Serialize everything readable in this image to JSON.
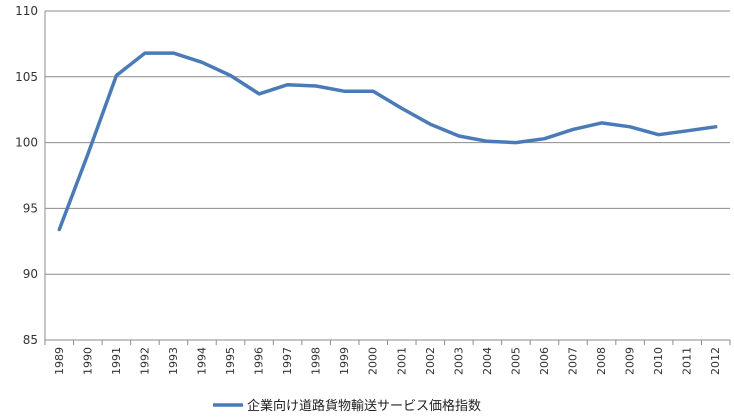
{
  "chart_data": {
    "type": "line",
    "x": [
      "1989",
      "1990",
      "1991",
      "1992",
      "1993",
      "1994",
      "1995",
      "1996",
      "1997",
      "1998",
      "1999",
      "2000",
      "2001",
      "2002",
      "2003",
      "2004",
      "2005",
      "2006",
      "2007",
      "2008",
      "2009",
      "2010",
      "2011",
      "2012"
    ],
    "series": [
      {
        "name": "企業向け道路貨物輸送サービス価格指数",
        "values": [
          93.4,
          99.1,
          105.1,
          106.8,
          106.8,
          106.1,
          105.1,
          103.7,
          104.4,
          104.3,
          103.9,
          103.9,
          102.6,
          101.4,
          100.5,
          100.1,
          100.0,
          100.3,
          101.0,
          101.5,
          101.2,
          100.6,
          100.9,
          101.2
        ],
        "color": "#4a7bb7"
      }
    ],
    "ylim": [
      85,
      110
    ],
    "yticks": [
      "85",
      "90",
      "95",
      "100",
      "105",
      "110"
    ],
    "grid": true,
    "legend_position": "bottom"
  }
}
